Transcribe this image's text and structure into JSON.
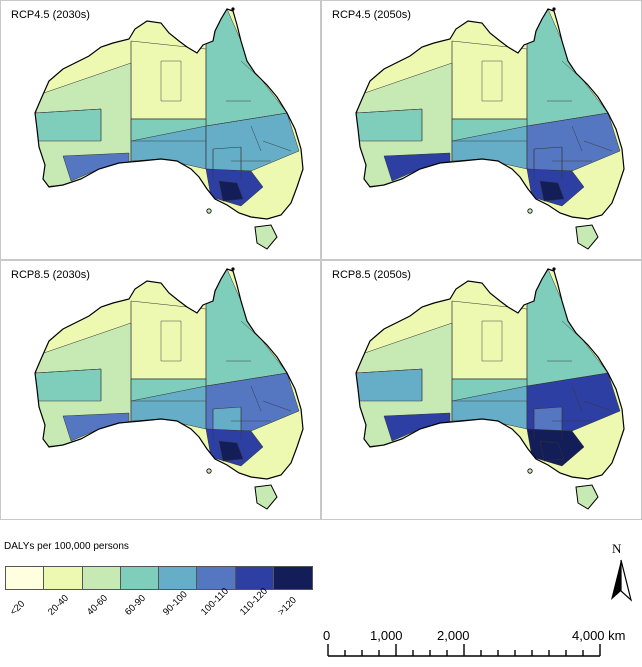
{
  "panels": [
    {
      "title": "RCP4.5 (2030s)",
      "shades": [
        1,
        2,
        3,
        3,
        3,
        4,
        4,
        5,
        4,
        6,
        7
      ]
    },
    {
      "title": "RCP4.5 (2050s)",
      "shades": [
        1,
        2,
        3,
        3,
        3,
        4,
        5,
        6,
        5,
        6,
        7
      ]
    },
    {
      "title": "RCP8.5 (2030s)",
      "shades": [
        1,
        2,
        3,
        3,
        3,
        4,
        5,
        5,
        4,
        6,
        7
      ]
    },
    {
      "title": "RCP8.5 (2050s)",
      "shades": [
        1,
        2,
        3,
        3,
        4,
        4,
        6,
        6,
        5,
        7,
        7
      ]
    }
  ],
  "legend": {
    "title": "DALYs per 100,000 persons",
    "classes": [
      {
        "label": "<20",
        "color": "#ffffe0"
      },
      {
        "label": "20-40",
        "color": "#edf8b1"
      },
      {
        "label": "40-60",
        "color": "#c7e9b4"
      },
      {
        "label": "60-90",
        "color": "#7fcdbb"
      },
      {
        "label": "90-100",
        "color": "#66aec8"
      },
      {
        "label": "100-110",
        "color": "#5577c2"
      },
      {
        "label": "110-120",
        "color": "#2e3fa3"
      },
      {
        "label": ">120",
        "color": "#131e58"
      }
    ]
  },
  "north_arrow": {
    "label": "N"
  },
  "scale_bar": {
    "labels": [
      "0",
      "1,000",
      "2,000",
      "4,000 km"
    ],
    "values_km": [
      0,
      1000,
      2000,
      4000
    ]
  }
}
